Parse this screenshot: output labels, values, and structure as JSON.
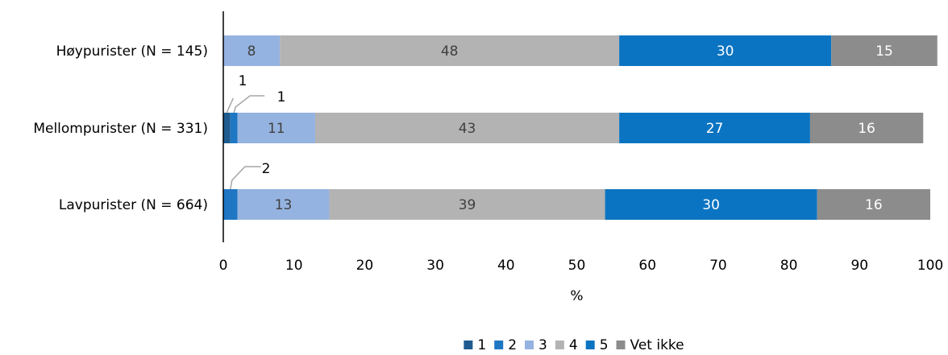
{
  "chart_data": {
    "type": "bar",
    "orientation": "horizontal",
    "stacked": true,
    "categories": [
      "Høypurister (N = 145)",
      "Mellompurister (N = 331)",
      "Lavpurister (N = 664)"
    ],
    "series": [
      {
        "name": "1",
        "color": "#1f5b8e",
        "values": [
          0,
          1,
          0
        ],
        "labels": [
          "",
          "1",
          ""
        ]
      },
      {
        "name": "2",
        "color": "#1f77c4",
        "values": [
          0,
          1,
          2
        ],
        "labels": [
          "",
          "1",
          "2"
        ]
      },
      {
        "name": "3",
        "color": "#95b3e0",
        "values": [
          8,
          11,
          13
        ],
        "labels": [
          "8",
          "11",
          "13"
        ]
      },
      {
        "name": "4",
        "color": "#b3b3b3",
        "values": [
          48,
          43,
          39
        ],
        "labels": [
          "48",
          "43",
          "39"
        ]
      },
      {
        "name": "5",
        "color": "#0b74c2",
        "values": [
          30,
          27,
          30
        ],
        "labels": [
          "30",
          "27",
          "30"
        ]
      },
      {
        "name": "Vet ikke",
        "color": "#8c8c8c",
        "values": [
          15,
          16,
          16
        ],
        "labels": [
          "15",
          "16",
          "16"
        ]
      }
    ],
    "xlabel": "%",
    "xlim": [
      0,
      100
    ],
    "xticks": [
      0,
      10,
      20,
      30,
      40,
      50,
      60,
      70,
      80,
      90,
      100
    ],
    "legend_position": "bottom",
    "grid": false
  }
}
